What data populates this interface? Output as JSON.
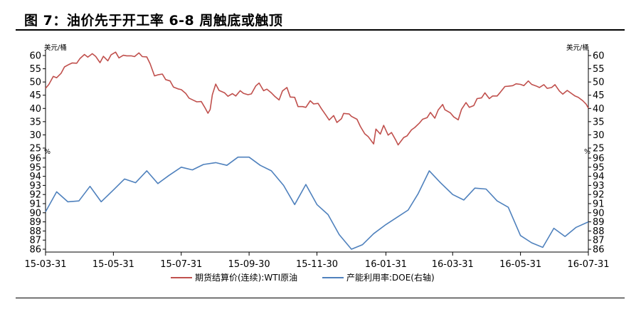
{
  "title": "图 7：油价先于开工率 6-8 周触底或触顶",
  "chart_data": {
    "type": "line",
    "colors": {
      "wti": "#c0504d",
      "doe": "#4f81bd"
    },
    "legend_position": "bottom",
    "grid": false,
    "x_range": [
      "15-03-31",
      "16-07-31"
    ],
    "x_ticks": [
      "15-03-31",
      "15-05-31",
      "15-07-31",
      "15-09-30",
      "15-11-30",
      "16-01-31",
      "16-03-31",
      "16-05-31",
      "16-07-31"
    ],
    "top_panel": {
      "unit_left": "美元/桶",
      "unit_right": "美元/桶",
      "ylim": [
        25,
        60
      ],
      "y_ticks": [
        "60",
        "55",
        "50",
        "45",
        "40",
        "35",
        "30",
        "25"
      ]
    },
    "bottom_panel": {
      "unit_left": "%",
      "unit_right": "%",
      "ylim": [
        86,
        96
      ],
      "y_ticks": [
        "96",
        "95",
        "94",
        "93",
        "92",
        "91",
        "90",
        "89",
        "88",
        "87",
        "86"
      ]
    },
    "series": [
      {
        "name": "期货结算价(连续):WTI原油",
        "panel": "top",
        "points": [
          [
            "2015-03-31",
            47.6
          ],
          [
            "2015-04-03",
            49.1
          ],
          [
            "2015-04-07",
            52.1
          ],
          [
            "2015-04-10",
            51.6
          ],
          [
            "2015-04-14",
            53.3
          ],
          [
            "2015-04-17",
            55.7
          ],
          [
            "2015-04-21",
            56.6
          ],
          [
            "2015-04-24",
            57.2
          ],
          [
            "2015-04-28",
            57.1
          ],
          [
            "2015-05-01",
            58.9
          ],
          [
            "2015-05-05",
            60.4
          ],
          [
            "2015-05-08",
            59.4
          ],
          [
            "2015-05-12",
            60.7
          ],
          [
            "2015-05-15",
            59.7
          ],
          [
            "2015-05-19",
            57.3
          ],
          [
            "2015-05-22",
            59.7
          ],
          [
            "2015-05-26",
            58.0
          ],
          [
            "2015-05-29",
            60.3
          ],
          [
            "2015-06-02",
            61.3
          ],
          [
            "2015-06-05",
            59.1
          ],
          [
            "2015-06-09",
            60.1
          ],
          [
            "2015-06-12",
            59.9
          ],
          [
            "2015-06-16",
            59.9
          ],
          [
            "2015-06-19",
            59.6
          ],
          [
            "2015-06-23",
            61.0
          ],
          [
            "2015-06-26",
            59.6
          ],
          [
            "2015-06-30",
            59.5
          ],
          [
            "2015-07-03",
            56.9
          ],
          [
            "2015-07-07",
            52.3
          ],
          [
            "2015-07-10",
            52.7
          ],
          [
            "2015-07-14",
            53.0
          ],
          [
            "2015-07-17",
            50.9
          ],
          [
            "2015-07-21",
            50.4
          ],
          [
            "2015-07-24",
            48.1
          ],
          [
            "2015-07-28",
            47.4
          ],
          [
            "2015-07-31",
            47.1
          ],
          [
            "2015-08-04",
            45.7
          ],
          [
            "2015-08-07",
            43.9
          ],
          [
            "2015-08-11",
            43.1
          ],
          [
            "2015-08-14",
            42.5
          ],
          [
            "2015-08-18",
            42.6
          ],
          [
            "2015-08-21",
            40.5
          ],
          [
            "2015-08-24",
            38.2
          ],
          [
            "2015-08-26",
            39.6
          ],
          [
            "2015-08-28",
            45.2
          ],
          [
            "2015-08-31",
            49.2
          ],
          [
            "2015-09-03",
            46.8
          ],
          [
            "2015-09-08",
            45.9
          ],
          [
            "2015-09-11",
            44.6
          ],
          [
            "2015-09-15",
            45.6
          ],
          [
            "2015-09-18",
            44.7
          ],
          [
            "2015-09-22",
            46.7
          ],
          [
            "2015-09-25",
            45.7
          ],
          [
            "2015-09-29",
            45.2
          ],
          [
            "2015-10-02",
            45.5
          ],
          [
            "2015-10-06",
            48.5
          ],
          [
            "2015-10-09",
            49.6
          ],
          [
            "2015-10-13",
            46.7
          ],
          [
            "2015-10-16",
            47.3
          ],
          [
            "2015-10-20",
            45.9
          ],
          [
            "2015-10-23",
            44.6
          ],
          [
            "2015-10-27",
            43.2
          ],
          [
            "2015-10-30",
            46.6
          ],
          [
            "2015-11-03",
            47.9
          ],
          [
            "2015-11-06",
            44.3
          ],
          [
            "2015-11-10",
            44.2
          ],
          [
            "2015-11-13",
            40.7
          ],
          [
            "2015-11-17",
            40.7
          ],
          [
            "2015-11-20",
            40.4
          ],
          [
            "2015-11-24",
            42.9
          ],
          [
            "2015-11-27",
            41.7
          ],
          [
            "2015-12-01",
            41.9
          ],
          [
            "2015-12-04",
            39.9
          ],
          [
            "2015-12-08",
            37.5
          ],
          [
            "2015-12-11",
            35.6
          ],
          [
            "2015-12-15",
            37.3
          ],
          [
            "2015-12-18",
            34.7
          ],
          [
            "2015-12-22",
            36.1
          ],
          [
            "2015-12-24",
            38.1
          ],
          [
            "2015-12-29",
            37.9
          ],
          [
            "2015-12-31",
            37.0
          ],
          [
            "2016-01-05",
            35.9
          ],
          [
            "2016-01-08",
            33.2
          ],
          [
            "2016-01-12",
            30.4
          ],
          [
            "2016-01-15",
            29.4
          ],
          [
            "2016-01-20",
            26.6
          ],
          [
            "2016-01-22",
            32.2
          ],
          [
            "2016-01-26",
            30.3
          ],
          [
            "2016-01-29",
            33.6
          ],
          [
            "2016-02-02",
            29.9
          ],
          [
            "2016-02-05",
            30.9
          ],
          [
            "2016-02-09",
            27.9
          ],
          [
            "2016-02-11",
            26.2
          ],
          [
            "2016-02-16",
            29.0
          ],
          [
            "2016-02-19",
            29.6
          ],
          [
            "2016-02-23",
            31.9
          ],
          [
            "2016-02-26",
            32.8
          ],
          [
            "2016-03-01",
            34.4
          ],
          [
            "2016-03-04",
            35.9
          ],
          [
            "2016-03-08",
            36.5
          ],
          [
            "2016-03-11",
            38.5
          ],
          [
            "2016-03-15",
            36.3
          ],
          [
            "2016-03-18",
            39.4
          ],
          [
            "2016-03-22",
            41.5
          ],
          [
            "2016-03-24",
            39.5
          ],
          [
            "2016-03-29",
            38.3
          ],
          [
            "2016-04-01",
            36.8
          ],
          [
            "2016-04-05",
            35.7
          ],
          [
            "2016-04-08",
            39.7
          ],
          [
            "2016-04-12",
            42.2
          ],
          [
            "2016-04-15",
            40.4
          ],
          [
            "2016-04-19",
            41.1
          ],
          [
            "2016-04-22",
            43.7
          ],
          [
            "2016-04-26",
            44.0
          ],
          [
            "2016-04-29",
            45.9
          ],
          [
            "2016-05-03",
            43.7
          ],
          [
            "2016-05-06",
            44.7
          ],
          [
            "2016-05-10",
            44.7
          ],
          [
            "2016-05-13",
            46.2
          ],
          [
            "2016-05-17",
            48.3
          ],
          [
            "2016-05-20",
            48.4
          ],
          [
            "2016-05-24",
            48.6
          ],
          [
            "2016-05-27",
            49.3
          ],
          [
            "2016-05-31",
            49.1
          ],
          [
            "2016-06-03",
            48.6
          ],
          [
            "2016-06-07",
            50.4
          ],
          [
            "2016-06-10",
            49.1
          ],
          [
            "2016-06-14",
            48.5
          ],
          [
            "2016-06-17",
            47.9
          ],
          [
            "2016-06-21",
            49.0
          ],
          [
            "2016-06-24",
            47.6
          ],
          [
            "2016-06-28",
            47.9
          ],
          [
            "2016-07-01",
            48.99
          ],
          [
            "2016-07-05",
            46.6
          ],
          [
            "2016-07-08",
            45.4
          ],
          [
            "2016-07-12",
            46.8
          ],
          [
            "2016-07-15",
            45.9
          ],
          [
            "2016-07-19",
            44.7
          ],
          [
            "2016-07-22",
            44.2
          ],
          [
            "2016-07-26",
            42.9
          ],
          [
            "2016-07-29",
            41.6
          ],
          [
            "2016-07-31",
            40.1
          ]
        ]
      },
      {
        "name": "产能利用率:DOE(右轴)",
        "panel": "bottom",
        "points": [
          [
            "2015-03-31",
            90.1
          ],
          [
            "2015-04-10",
            92.3
          ],
          [
            "2015-04-20",
            91.2
          ],
          [
            "2015-04-30",
            91.3
          ],
          [
            "2015-05-10",
            92.9
          ],
          [
            "2015-05-20",
            91.2
          ],
          [
            "2015-05-31",
            92.5
          ],
          [
            "2015-06-10",
            93.7
          ],
          [
            "2015-06-20",
            93.3
          ],
          [
            "2015-06-30",
            94.6
          ],
          [
            "2015-07-10",
            93.2
          ],
          [
            "2015-07-20",
            94.1
          ],
          [
            "2015-07-31",
            95.0
          ],
          [
            "2015-08-10",
            94.7
          ],
          [
            "2015-08-20",
            95.3
          ],
          [
            "2015-08-31",
            95.5
          ],
          [
            "2015-09-10",
            95.2
          ],
          [
            "2015-09-20",
            96.1
          ],
          [
            "2015-09-30",
            96.1
          ],
          [
            "2015-10-10",
            95.2
          ],
          [
            "2015-10-20",
            94.6
          ],
          [
            "2015-10-31",
            93.0
          ],
          [
            "2015-11-10",
            90.9
          ],
          [
            "2015-11-20",
            93.1
          ],
          [
            "2015-11-30",
            90.9
          ],
          [
            "2015-12-10",
            89.8
          ],
          [
            "2015-12-20",
            87.6
          ],
          [
            "2015-12-31",
            86.0
          ],
          [
            "2016-01-10",
            86.5
          ],
          [
            "2016-01-20",
            87.7
          ],
          [
            "2016-01-31",
            88.7
          ],
          [
            "2016-02-10",
            89.5
          ],
          [
            "2016-02-20",
            90.3
          ],
          [
            "2016-02-29",
            92.1
          ],
          [
            "2016-03-10",
            94.6
          ],
          [
            "2016-03-20",
            93.3
          ],
          [
            "2016-03-31",
            92.0
          ],
          [
            "2016-04-10",
            91.4
          ],
          [
            "2016-04-20",
            92.7
          ],
          [
            "2016-04-30",
            92.6
          ],
          [
            "2016-05-10",
            91.3
          ],
          [
            "2016-05-20",
            90.6
          ],
          [
            "2016-05-31",
            87.5
          ],
          [
            "2016-06-10",
            86.7
          ],
          [
            "2016-06-20",
            86.2
          ],
          [
            "2016-06-30",
            88.3
          ],
          [
            "2016-07-10",
            87.4
          ],
          [
            "2016-07-20",
            88.4
          ],
          [
            "2016-07-31",
            89.0
          ]
        ]
      }
    ]
  }
}
